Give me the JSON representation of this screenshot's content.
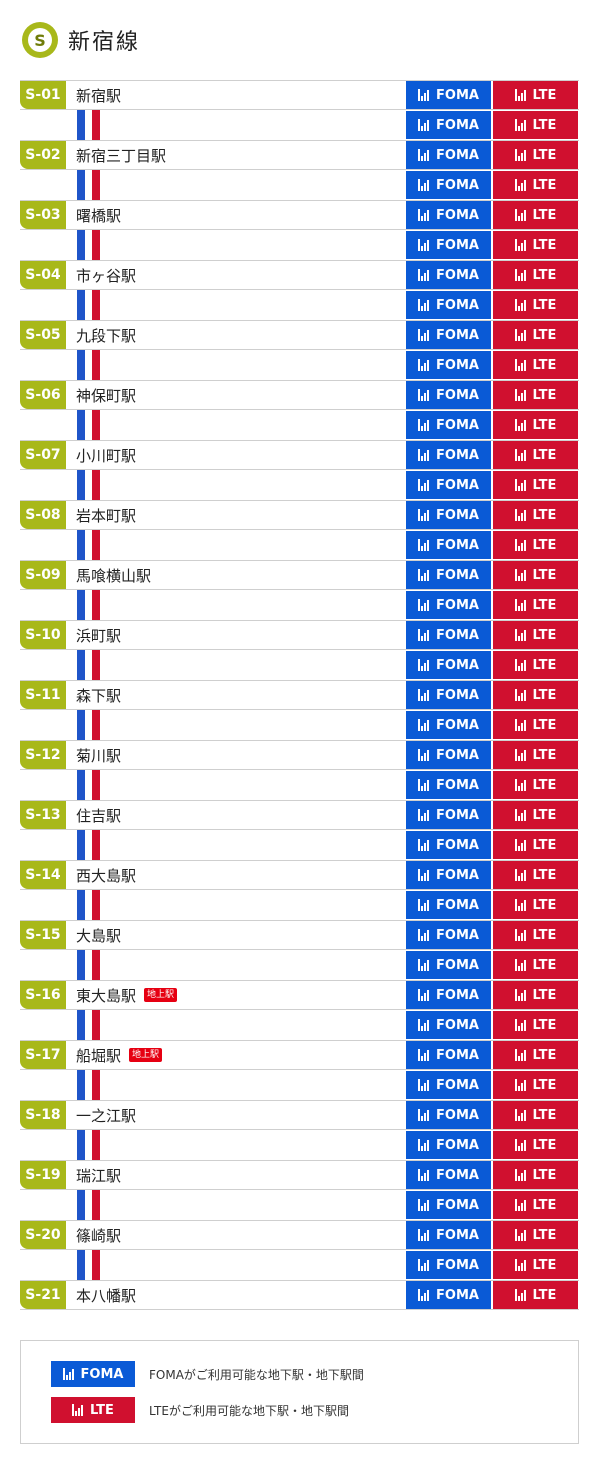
{
  "header": {
    "icon_letter": "S",
    "title": "新宿線"
  },
  "badges": {
    "foma": "FOMA",
    "lte": "LTE"
  },
  "stations": [
    {
      "code": "S-01",
      "name": "新宿駅",
      "ground": ""
    },
    {
      "code": "S-02",
      "name": "新宿三丁目駅",
      "ground": ""
    },
    {
      "code": "S-03",
      "name": "曙橋駅",
      "ground": ""
    },
    {
      "code": "S-04",
      "name": "市ヶ谷駅",
      "ground": ""
    },
    {
      "code": "S-05",
      "name": "九段下駅",
      "ground": ""
    },
    {
      "code": "S-06",
      "name": "神保町駅",
      "ground": ""
    },
    {
      "code": "S-07",
      "name": "小川町駅",
      "ground": ""
    },
    {
      "code": "S-08",
      "name": "岩本町駅",
      "ground": ""
    },
    {
      "code": "S-09",
      "name": "馬喰横山駅",
      "ground": ""
    },
    {
      "code": "S-10",
      "name": "浜町駅",
      "ground": ""
    },
    {
      "code": "S-11",
      "name": "森下駅",
      "ground": ""
    },
    {
      "code": "S-12",
      "name": "菊川駅",
      "ground": ""
    },
    {
      "code": "S-13",
      "name": "住吉駅",
      "ground": ""
    },
    {
      "code": "S-14",
      "name": "西大島駅",
      "ground": ""
    },
    {
      "code": "S-15",
      "name": "大島駅",
      "ground": ""
    },
    {
      "code": "S-16",
      "name": "東大島駅",
      "ground": "地上駅"
    },
    {
      "code": "S-17",
      "name": "船堀駅",
      "ground": "地上駅"
    },
    {
      "code": "S-18",
      "name": "一之江駅",
      "ground": ""
    },
    {
      "code": "S-19",
      "name": "瑞江駅",
      "ground": ""
    },
    {
      "code": "S-20",
      "name": "篠崎駅",
      "ground": ""
    },
    {
      "code": "S-21",
      "name": "本八幡駅",
      "ground": ""
    }
  ],
  "legend": {
    "foma_label": "FOMA",
    "foma_text": "FOMAがご利用可能な地下駅・地下駅間",
    "lte_label": "LTE",
    "lte_text": "LTEがご利用可能な地下駅・地下駅間"
  },
  "colors": {
    "line": "#a8b81a",
    "foma": "#0a5ad6",
    "lte": "#d0102f"
  }
}
